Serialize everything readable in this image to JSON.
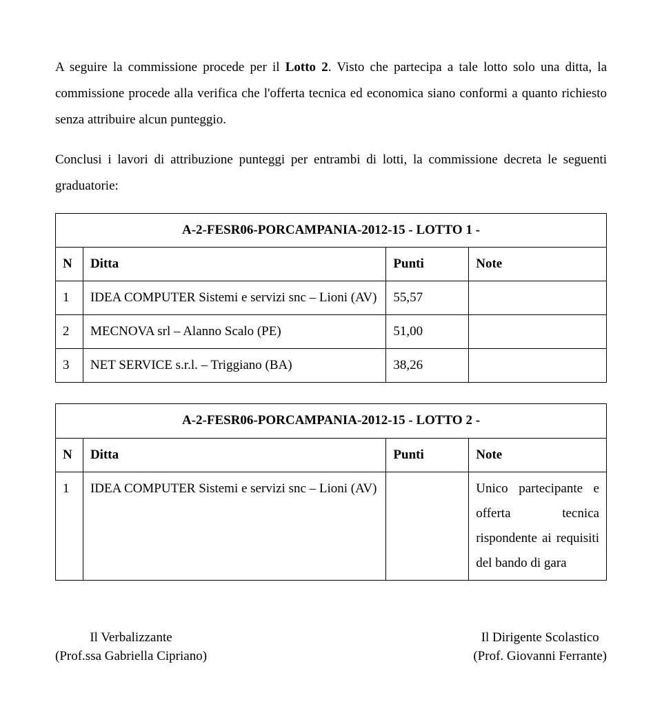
{
  "paragraphs": {
    "p1_a": "A seguire la commissione procede per il ",
    "p1_bold": "Lotto 2",
    "p1_b": ". Visto che partecipa a tale lotto solo una ditta, la commissione procede alla verifica che l'offerta tecnica ed economica siano conformi a quanto richiesto senza attribuire alcun punteggio.",
    "p2": "Conclusi i lavori di attribuzione punteggi per entrambi di lotti, la commissione decreta le seguenti graduatorie:"
  },
  "table1": {
    "title": "A-2-FESR06-PORCAMPANIA-2012-15 - LOTTO 1 -",
    "headers": {
      "n": "N",
      "ditta": "Ditta",
      "punti": "Punti",
      "note": "Note"
    },
    "rows": [
      {
        "n": "1",
        "ditta": "IDEA COMPUTER Sistemi e servizi snc – Lioni (AV)",
        "punti": "55,57",
        "note": ""
      },
      {
        "n": "2",
        "ditta": "MECNOVA srl – Alanno Scalo (PE)",
        "punti": "51,00",
        "note": ""
      },
      {
        "n": "3",
        "ditta": "NET SERVICE s.r.l. – Triggiano (BA)",
        "punti": "38,26",
        "note": ""
      }
    ]
  },
  "table2": {
    "title": "A-2-FESR06-PORCAMPANIA-2012-15 - LOTTO 2 -",
    "headers": {
      "n": "N",
      "ditta": "Ditta",
      "punti": "Punti",
      "note": "Note"
    },
    "rows": [
      {
        "n": "1",
        "ditta": "IDEA COMPUTER Sistemi e servizi snc – Lioni (AV)",
        "punti": "",
        "note": "Unico partecipante e offerta tecnica rispondente ai requisiti del bando di gara"
      }
    ]
  },
  "signatures": {
    "left_title": "Il Verbalizzante",
    "left_name": "(Prof.ssa Gabriella Cipriano)",
    "right_title": "Il Dirigente Scolastico",
    "right_name": "(Prof. Giovanni Ferrante)"
  },
  "colors": {
    "text": "#000000",
    "background": "#ffffff",
    "border": "#000000"
  }
}
